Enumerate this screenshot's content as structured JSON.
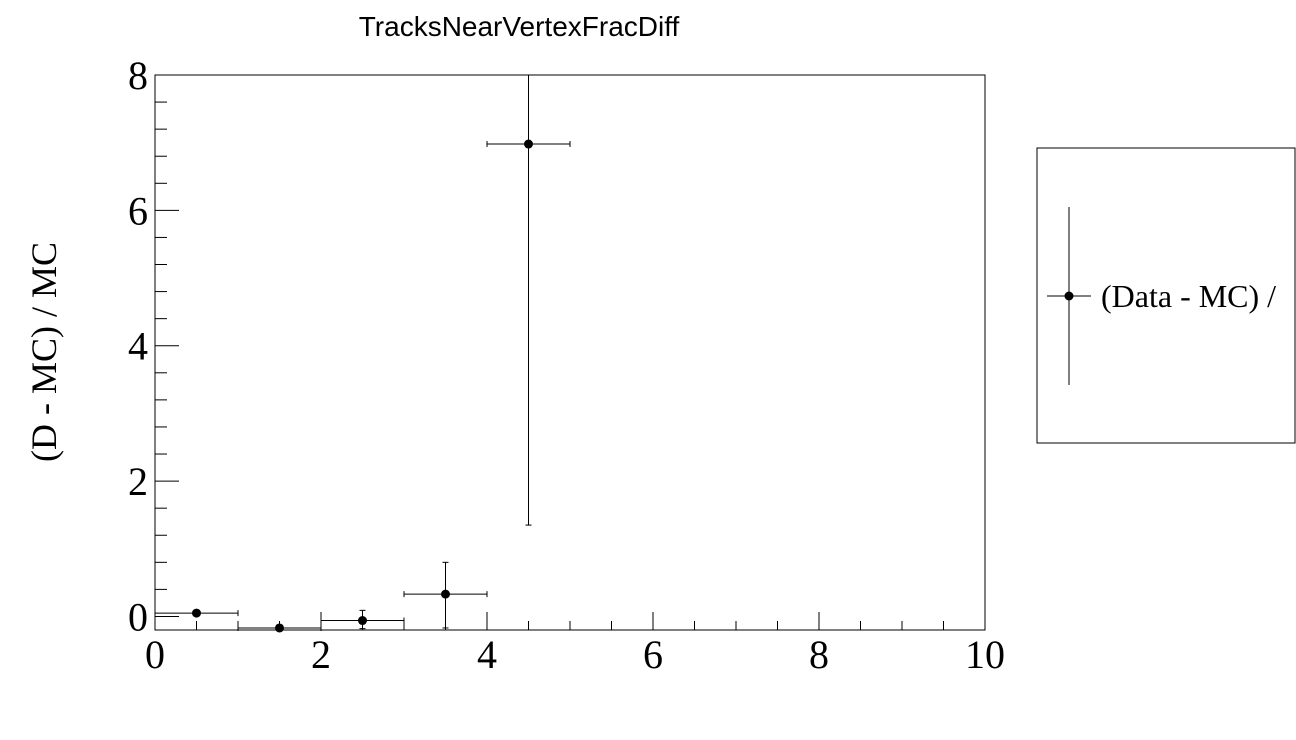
{
  "chart_data": {
    "type": "scatter",
    "title": "TracksNearVertexFracDiff",
    "xlabel": "",
    "ylabel": "(D - MC) / MC",
    "xlim": [
      0,
      10
    ],
    "ylim": [
      -0.2,
      8.0
    ],
    "x_ticks": [
      "0",
      "2",
      "4",
      "6",
      "8",
      "10"
    ],
    "y_ticks": [
      "0",
      "2",
      "4",
      "6",
      "8"
    ],
    "grid": false,
    "legend_position": "right",
    "series": [
      {
        "name": "(Data - MC) /",
        "points": [
          {
            "x": 0.5,
            "y": 0.05,
            "xerr": 0.5,
            "yerr_low": 0.0,
            "yerr_high": 0.0
          },
          {
            "x": 1.5,
            "y": -0.17,
            "xerr": 0.5,
            "yerr_low": 0.0,
            "yerr_high": 0.0
          },
          {
            "x": 2.5,
            "y": -0.06,
            "xerr": 0.5,
            "yerr_low": 0.12,
            "yerr_high": 0.15
          },
          {
            "x": 3.5,
            "y": 0.33,
            "xerr": 0.5,
            "yerr_low": 0.5,
            "yerr_high": 0.47
          },
          {
            "x": 4.5,
            "y": 6.98,
            "xerr": 0.5,
            "yerr_low": 5.63,
            "yerr_high": 1.02
          }
        ]
      }
    ]
  }
}
